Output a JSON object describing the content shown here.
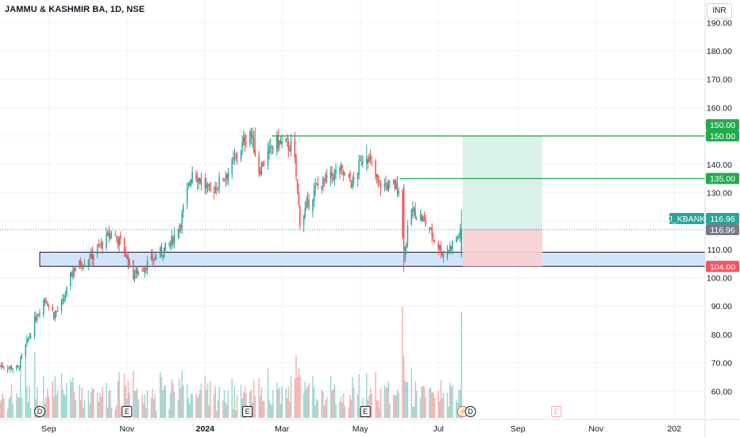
{
  "header": {
    "title": "JAMMU & KASHMIR BA, 1D, NSE",
    "currency": "INR"
  },
  "chart_data": {
    "type": "candlestick",
    "symbol": "J_KBANK",
    "ylim": [
      50,
      195
    ],
    "y_ticks": [
      "190.00",
      "180.00",
      "170.00",
      "160.00",
      "140.00",
      "130.00",
      "110.00",
      "100.00",
      "90.00",
      "80.00",
      "70.00",
      "60.00"
    ],
    "x_ticks": [
      "Sep",
      "Nov",
      "2024",
      "Mar",
      "May",
      "Jul",
      "Sep",
      "Nov",
      "202"
    ],
    "x_tick_values": [
      "2023-09-01",
      "2023-11-01",
      "2024-01-01",
      "2024-03-01",
      "2024-05-01",
      "2024-07-01",
      "2024-09-01",
      "2024-11-01",
      "2025-01-01"
    ],
    "x_range": [
      "2023-07-25",
      "2025-01-25"
    ],
    "last_bar_date": "2024-07-20",
    "close_series_anchors": [
      {
        "date": "2023-07-25",
        "close": 69
      },
      {
        "date": "2023-08-08",
        "close": 68
      },
      {
        "date": "2023-08-22",
        "close": 86
      },
      {
        "date": "2023-08-29",
        "close": 93
      },
      {
        "date": "2023-09-05",
        "close": 87
      },
      {
        "date": "2023-09-12",
        "close": 91
      },
      {
        "date": "2023-09-20",
        "close": 103
      },
      {
        "date": "2023-10-05",
        "close": 108
      },
      {
        "date": "2023-10-20",
        "close": 116
      },
      {
        "date": "2023-10-28",
        "close": 112
      },
      {
        "date": "2023-11-06",
        "close": 101
      },
      {
        "date": "2023-11-20",
        "close": 106
      },
      {
        "date": "2023-12-05",
        "close": 112
      },
      {
        "date": "2023-12-13",
        "close": 120
      },
      {
        "date": "2023-12-22",
        "close": 138
      },
      {
        "date": "2024-01-05",
        "close": 130
      },
      {
        "date": "2024-01-20",
        "close": 138
      },
      {
        "date": "2024-02-05",
        "close": 152
      },
      {
        "date": "2024-02-12",
        "close": 138
      },
      {
        "date": "2024-02-25",
        "close": 148
      },
      {
        "date": "2024-03-10",
        "close": 146
      },
      {
        "date": "2024-03-15",
        "close": 120
      },
      {
        "date": "2024-03-28",
        "close": 132
      },
      {
        "date": "2024-04-15",
        "close": 138
      },
      {
        "date": "2024-04-25",
        "close": 133
      },
      {
        "date": "2024-05-05",
        "close": 145
      },
      {
        "date": "2024-05-15",
        "close": 133
      },
      {
        "date": "2024-05-31",
        "close": 132
      },
      {
        "date": "2024-06-04",
        "close": 108
      },
      {
        "date": "2024-06-10",
        "close": 124
      },
      {
        "date": "2024-06-20",
        "close": 120
      },
      {
        "date": "2024-07-05",
        "close": 108
      },
      {
        "date": "2024-07-12",
        "close": 112
      },
      {
        "date": "2024-07-20",
        "close": 116.96
      }
    ],
    "volume_note": "volume bars, largest on 2024-07-20",
    "horizontal_levels": [
      {
        "price": 150.0,
        "from": "2024-02-22",
        "color": "#22ab4c"
      },
      {
        "price": 135.0,
        "from": "2024-06-01",
        "color": "#22ab4c"
      }
    ],
    "support_zone": {
      "low": 104.0,
      "high": 109.0,
      "from": "2023-08-25",
      "color": "#bbd4f7"
    },
    "position": {
      "type": "long",
      "entry": 116.96,
      "target": 150.0,
      "stop": 104.0,
      "from": "2024-07-20",
      "to": "2024-09-20",
      "profit_color": "#d6efe6",
      "loss_color": "#f8cfd1"
    },
    "price_badges": [
      {
        "label": "150.00",
        "price": 150.0,
        "offset": -14,
        "color": "#22ab4c"
      },
      {
        "label": "150.00",
        "price": 150.0,
        "offset": 0,
        "color": "#22ab4c"
      },
      {
        "label": "135.00",
        "price": 135.0,
        "offset": 0,
        "color": "#22ab4c"
      },
      {
        "label": "116.96",
        "price": 116.96,
        "offset": -14,
        "color": "#26a69a"
      },
      {
        "label": "116.96",
        "price": 116.96,
        "offset": 0,
        "color": "#787b86"
      },
      {
        "label": "104.00",
        "price": 104.0,
        "offset": 0,
        "color": "#f7525f"
      }
    ],
    "symbol_label_color": "#26a69a",
    "bull_color": "#26a69a",
    "bear_color": "#ef5350",
    "event_markers": [
      {
        "date": "2023-08-25",
        "glyph": "D",
        "shape": "circle"
      },
      {
        "date": "2023-11-01",
        "glyph": "E",
        "shape": "square"
      },
      {
        "date": "2024-02-03",
        "glyph": "E",
        "shape": "square"
      },
      {
        "date": "2024-05-05",
        "glyph": "E",
        "shape": "square"
      },
      {
        "date": "2024-07-20",
        "glyph": "⚡",
        "shape": "circle-red"
      },
      {
        "date": "2024-07-26",
        "glyph": "D",
        "shape": "circle"
      },
      {
        "date": "2024-10-01",
        "glyph": "E",
        "shape": "square-red"
      }
    ]
  }
}
